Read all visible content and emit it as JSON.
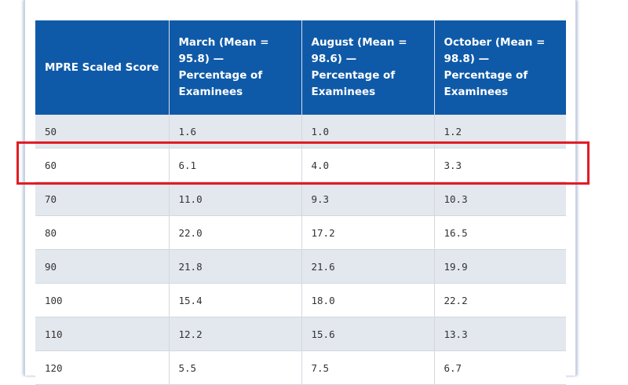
{
  "table": {
    "headers": [
      "MPRE Scaled Score",
      "March (Mean = 95.8) — Percentage of Examinees",
      "August (Mean = 98.6) — Percentage of Examinees",
      "October (Mean = 98.8) — Percentage of Examinees"
    ],
    "rows": [
      [
        "50",
        "1.6",
        "1.0",
        "1.2"
      ],
      [
        "60",
        "6.1",
        "4.0",
        "3.3"
      ],
      [
        "70",
        "11.0",
        "9.3",
        "10.3"
      ],
      [
        "80",
        "22.0",
        "17.2",
        "16.5"
      ],
      [
        "90",
        "21.8",
        "21.6",
        "19.9"
      ],
      [
        "100",
        "15.4",
        "18.0",
        "22.2"
      ],
      [
        "110",
        "12.2",
        "15.6",
        "13.3"
      ],
      [
        "120",
        "5.5",
        "7.5",
        "6.7"
      ]
    ]
  },
  "highlight": {
    "row_index": 1,
    "color": "#e21c24"
  },
  "colors": {
    "header_bg": "#0f5aa8",
    "row_alt_bg": "#e3e7ee"
  }
}
